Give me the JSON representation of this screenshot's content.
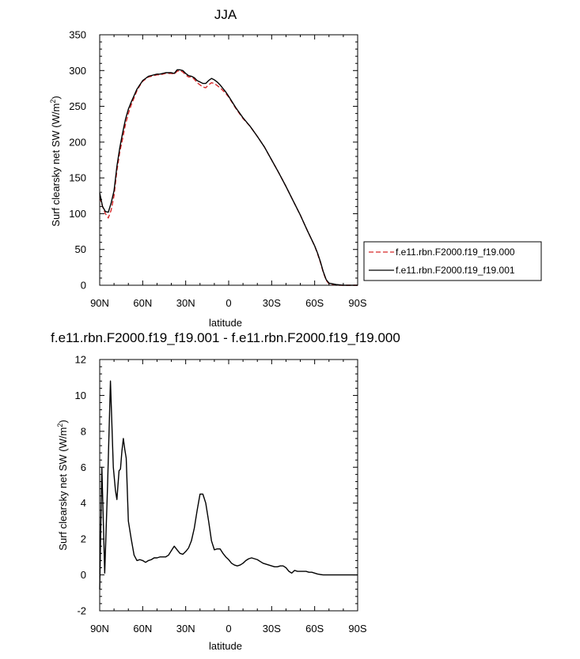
{
  "chart_data": [
    {
      "type": "line",
      "title": "JJA",
      "xlabel": "latitude",
      "ylabel": "Surf clearsky net SW (W/m",
      "ylabel_sup": "2",
      "ylabel_end": ")",
      "xlim": [
        90,
        -90
      ],
      "ylim": [
        0,
        350
      ],
      "xticks": [
        90,
        60,
        30,
        0,
        -30,
        -60,
        -90
      ],
      "xtick_labels": [
        "90N",
        "60N",
        "30N",
        "0",
        "30S",
        "60S",
        "90S"
      ],
      "yticks": [
        0,
        50,
        100,
        150,
        200,
        250,
        300,
        350
      ],
      "ytick_labels": [
        "0",
        "50",
        "100",
        "150",
        "200",
        "250",
        "300",
        "350"
      ],
      "legend_position": "right",
      "series": [
        {
          "name": "f.e11.rbn.F2000.f19_f19.000",
          "color": "#d62728",
          "dash": "dashed",
          "x": [
            90,
            88,
            86,
            84,
            82,
            80,
            78,
            76,
            74,
            72,
            70,
            68,
            66,
            64,
            62,
            60,
            58,
            56,
            54,
            52,
            50,
            48,
            46,
            44,
            42,
            40,
            38,
            36,
            34,
            32,
            30,
            28,
            26,
            24,
            22,
            20,
            18,
            16,
            14,
            12,
            10,
            8,
            6,
            4,
            2,
            0,
            -5,
            -10,
            -15,
            -20,
            -25,
            -30,
            -35,
            -40,
            -45,
            -50,
            -55,
            -60,
            -62,
            -64,
            -66,
            -68,
            -70,
            -75,
            -80,
            -85,
            -90
          ],
          "y": [
            123,
            110,
            100,
            94,
            105,
            125,
            160,
            186,
            205,
            225,
            240,
            252,
            262,
            272,
            279,
            285,
            288,
            291,
            292,
            293,
            294,
            294,
            295,
            296,
            296,
            296,
            295,
            299,
            300,
            298,
            294,
            291,
            291,
            288,
            283,
            280,
            277,
            276,
            280,
            283,
            282,
            279,
            276,
            272,
            268,
            263,
            247,
            233,
            222,
            208,
            193,
            175,
            157,
            138,
            118,
            98,
            76,
            55,
            44,
            32,
            18,
            7,
            2,
            0,
            0,
            0,
            0
          ]
        },
        {
          "name": "f.e11.rbn.F2000.f19_f19.001",
          "color": "#000000",
          "dash": "solid",
          "x": [
            90,
            88,
            86,
            84,
            82,
            80,
            78,
            76,
            74,
            72,
            70,
            68,
            66,
            64,
            62,
            60,
            58,
            56,
            54,
            52,
            50,
            48,
            46,
            44,
            42,
            40,
            38,
            36,
            34,
            32,
            30,
            28,
            26,
            24,
            22,
            20,
            18,
            16,
            14,
            12,
            10,
            8,
            6,
            4,
            2,
            0,
            -5,
            -10,
            -15,
            -20,
            -25,
            -30,
            -35,
            -40,
            -45,
            -50,
            -55,
            -60,
            -62,
            -64,
            -66,
            -68,
            -70,
            -75,
            -80,
            -85,
            -90
          ],
          "y": [
            129,
            110,
            103,
            102,
            115,
            132,
            166,
            192,
            213,
            232,
            246,
            256,
            265,
            274,
            280,
            286,
            289,
            292,
            293,
            294,
            295,
            295,
            296,
            297,
            297,
            297,
            296,
            301,
            301,
            300,
            296,
            293,
            292,
            290,
            286,
            284,
            282,
            282,
            286,
            289,
            287,
            284,
            280,
            275,
            270,
            264,
            248,
            234,
            222,
            208,
            193,
            175,
            157,
            138,
            118,
            98,
            76,
            55,
            45,
            33,
            19,
            8,
            3,
            1,
            0,
            0,
            0
          ]
        }
      ]
    },
    {
      "type": "line",
      "title": "f.e11.rbn.F2000.f19_f19.001 - f.e11.rbn.F2000.f19_f19.000",
      "xlabel": "latitude",
      "ylabel": "Surf clearsky net SW (W/m",
      "ylabel_sup": "2",
      "ylabel_end": ")",
      "xlim": [
        90,
        -90
      ],
      "ylim": [
        -2,
        12
      ],
      "xticks": [
        90,
        60,
        30,
        0,
        -30,
        -60,
        -90
      ],
      "xtick_labels": [
        "90N",
        "60N",
        "30N",
        "0",
        "30S",
        "60S",
        "90S"
      ],
      "yticks": [
        -2,
        0,
        2,
        4,
        6,
        8,
        10,
        12
      ],
      "ytick_labels": [
        "-2",
        "0",
        "2",
        "4",
        "6",
        "8",
        "10",
        "12"
      ],
      "series": [
        {
          "color": "#000000",
          "dash": "solid",
          "x": [
            90,
            88.5,
            86.5,
            84.5,
            82.5,
            80.5,
            79,
            78,
            76.5,
            75.5,
            74.5,
            73.5,
            72.5,
            71.5,
            70,
            68,
            66,
            64,
            62,
            60,
            58,
            56,
            54,
            52,
            50,
            48,
            46,
            44,
            42,
            40,
            38,
            36,
            34,
            32,
            30,
            28,
            26,
            24,
            22,
            20,
            18,
            16,
            14,
            12,
            10,
            8,
            6,
            4,
            2,
            0,
            -2,
            -4,
            -6,
            -8,
            -10,
            -12,
            -14,
            -16,
            -18,
            -20,
            -22,
            -24,
            -26,
            -28,
            -30,
            -32,
            -34,
            -36,
            -38,
            -40,
            -42,
            -44,
            -46,
            -48,
            -50,
            -52,
            -54,
            -56,
            -58,
            -60,
            -62,
            -64,
            -66,
            -68,
            -70,
            -75,
            -80,
            -85,
            -90
          ],
          "y": [
            -0.8,
            6.0,
            0.1,
            5.0,
            10.8,
            6.0,
            4.7,
            4.2,
            5.8,
            5.9,
            6.9,
            7.6,
            7.0,
            6.5,
            3.0,
            2.0,
            1.1,
            0.8,
            0.85,
            0.8,
            0.7,
            0.8,
            0.85,
            0.95,
            0.95,
            1.0,
            1.0,
            1.0,
            1.1,
            1.35,
            1.6,
            1.4,
            1.2,
            1.15,
            1.3,
            1.5,
            1.9,
            2.6,
            3.6,
            4.5,
            4.5,
            4.0,
            3.0,
            1.9,
            1.4,
            1.45,
            1.45,
            1.2,
            1.0,
            0.85,
            0.65,
            0.55,
            0.5,
            0.55,
            0.65,
            0.8,
            0.9,
            0.95,
            0.9,
            0.85,
            0.75,
            0.65,
            0.6,
            0.55,
            0.5,
            0.45,
            0.45,
            0.5,
            0.5,
            0.4,
            0.2,
            0.1,
            0.25,
            0.2,
            0.2,
            0.2,
            0.2,
            0.15,
            0.15,
            0.1,
            0.05,
            0.02,
            0,
            0,
            0,
            0,
            0,
            0,
            0
          ]
        }
      ]
    }
  ]
}
